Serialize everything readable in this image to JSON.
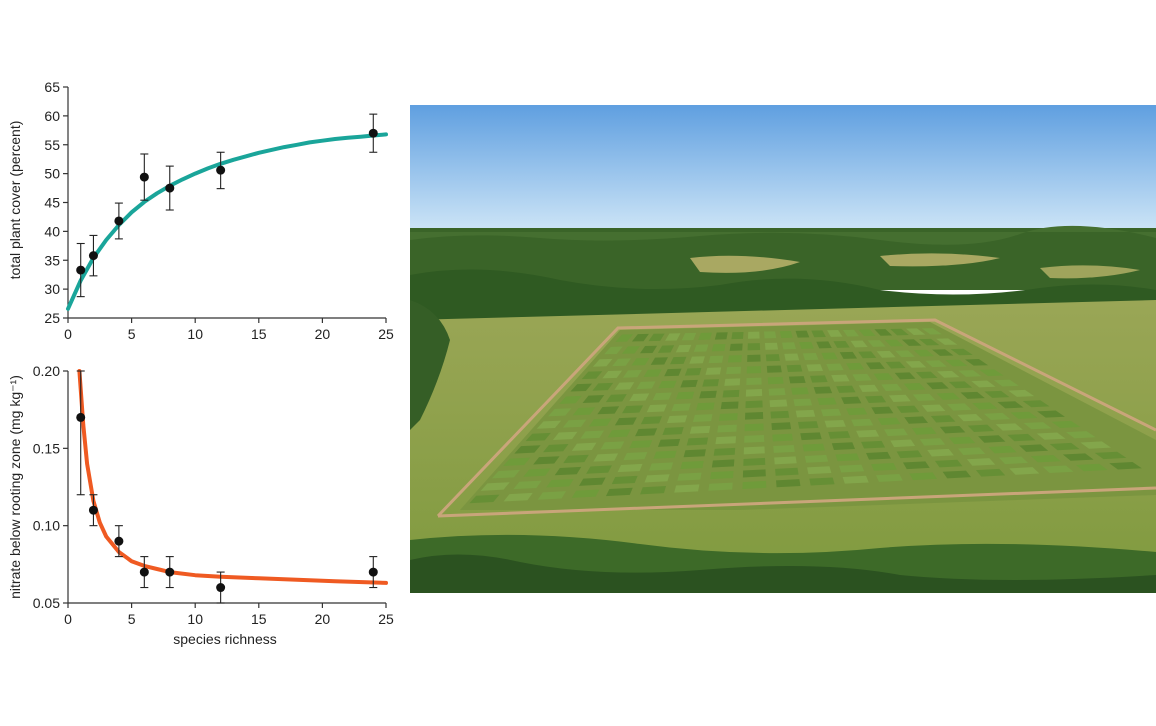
{
  "chart_data": [
    {
      "type": "scatter",
      "title": "",
      "xlabel": "",
      "ylabel": "total plant cover (percent)",
      "xlim": [
        0,
        25
      ],
      "ylim": [
        25,
        65
      ],
      "xticks": [
        "0",
        "5",
        "10",
        "15",
        "20",
        "25"
      ],
      "yticks": [
        "25",
        "30",
        "35",
        "40",
        "45",
        "50",
        "55",
        "60",
        "65"
      ],
      "fit_color": "#1aa59a",
      "grid": false,
      "points": [
        {
          "x": 1,
          "y": 33.3,
          "err_low": 28.7,
          "err_high": 37.9
        },
        {
          "x": 2,
          "y": 35.8,
          "err_low": 32.3,
          "err_high": 39.3
        },
        {
          "x": 4,
          "y": 41.8,
          "err_low": 38.7,
          "err_high": 44.9
        },
        {
          "x": 6,
          "y": 49.4,
          "err_low": 45.4,
          "err_high": 53.4
        },
        {
          "x": 8,
          "y": 47.5,
          "err_low": 43.7,
          "err_high": 51.3
        },
        {
          "x": 12,
          "y": 50.6,
          "err_low": 47.4,
          "err_high": 53.7
        },
        {
          "x": 24,
          "y": 57.0,
          "err_low": 53.7,
          "err_high": 60.3
        }
      ],
      "fit": {
        "x": [
          0,
          1,
          2,
          3,
          4,
          5,
          6,
          7,
          8,
          9,
          10,
          11,
          12,
          13,
          14,
          15,
          16,
          17,
          18,
          19,
          20,
          21,
          22,
          23,
          24,
          25
        ],
        "y": [
          26.6,
          31.5,
          35.4,
          38.5,
          41.1,
          43.3,
          45.1,
          46.6,
          47.9,
          49.0,
          50.0,
          50.9,
          51.7,
          52.4,
          53.0,
          53.6,
          54.1,
          54.6,
          55.0,
          55.4,
          55.7,
          56.0,
          56.2,
          56.4,
          56.6,
          56.8
        ]
      }
    },
    {
      "type": "scatter",
      "title": "",
      "xlabel": "species richness",
      "ylabel": "nitrate below rooting zone (mg kg⁻¹)",
      "xlim": [
        0,
        25
      ],
      "ylim": [
        0.05,
        0.2
      ],
      "xticks": [
        "0",
        "5",
        "10",
        "15",
        "20",
        "25"
      ],
      "yticks": [
        "0.05",
        "0.10",
        "0.15",
        "0.20"
      ],
      "fit_color": "#ef5a22",
      "grid": false,
      "points": [
        {
          "x": 1,
          "y": 0.17,
          "err_low": 0.12,
          "err_high": 0.2
        },
        {
          "x": 2,
          "y": 0.11,
          "err_low": 0.1,
          "err_high": 0.12
        },
        {
          "x": 4,
          "y": 0.09,
          "err_low": 0.08,
          "err_high": 0.1
        },
        {
          "x": 6,
          "y": 0.07,
          "err_low": 0.06,
          "err_high": 0.08
        },
        {
          "x": 8,
          "y": 0.07,
          "err_low": 0.06,
          "err_high": 0.08
        },
        {
          "x": 12,
          "y": 0.06,
          "err_low": 0.05,
          "err_high": 0.07
        },
        {
          "x": 24,
          "y": 0.07,
          "err_low": 0.06,
          "err_high": 0.08
        }
      ],
      "fit": {
        "x": [
          0.9,
          1.2,
          1.5,
          2,
          2.5,
          3,
          4,
          5,
          6,
          7,
          8,
          10,
          12,
          15,
          18,
          21,
          25
        ],
        "y": [
          0.2,
          0.165,
          0.14,
          0.116,
          0.102,
          0.093,
          0.083,
          0.077,
          0.074,
          0.072,
          0.07,
          0.068,
          0.067,
          0.066,
          0.065,
          0.064,
          0.063
        ]
      }
    }
  ],
  "photo": {
    "icon": "aerial-field-photo",
    "sky_top": "#5f9fe0",
    "sky_bottom": "#cfe6f7",
    "forest": "#2f5a22",
    "field": "#8ea24a",
    "plot": "#6f9b3a",
    "track": "#c9a57a"
  }
}
